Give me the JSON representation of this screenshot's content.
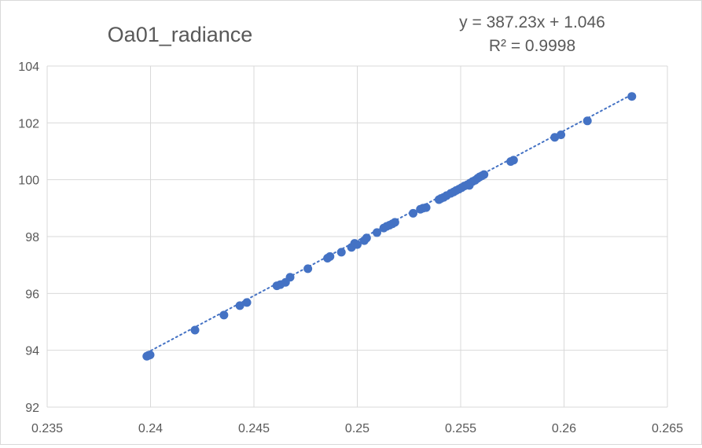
{
  "chart_data": {
    "type": "scatter",
    "title": "Oa01_radiance",
    "trendline": {
      "equation": "y = 387.23x + 1.046",
      "r_squared": "R² = 0.9998",
      "slope": 387.23,
      "intercept": 1.046,
      "style": "dotted"
    },
    "xlim": [
      0.235,
      0.265
    ],
    "ylim": [
      92,
      104
    ],
    "x_ticks": [
      0.235,
      0.24,
      0.245,
      0.25,
      0.255,
      0.26,
      0.265
    ],
    "x_tick_labels": [
      "0.235",
      "0.24",
      "0.245",
      "0.25",
      "0.255",
      "0.26",
      "0.265"
    ],
    "y_ticks": [
      92,
      94,
      96,
      98,
      100,
      102,
      104
    ],
    "y_tick_labels": [
      "92",
      "94",
      "96",
      "98",
      "100",
      "102",
      "104"
    ],
    "grid": true,
    "xlabel": "",
    "ylabel": "",
    "colors": {
      "points": "#4472c4",
      "trendline": "#4472c4",
      "grid": "#d9d9d9",
      "text": "#595959"
    },
    "points": [
      [
        0.23982,
        93.79
      ],
      [
        0.2399,
        93.82
      ],
      [
        0.23998,
        93.84
      ],
      [
        0.24215,
        94.71
      ],
      [
        0.24355,
        95.24
      ],
      [
        0.24432,
        95.57
      ],
      [
        0.24466,
        95.68
      ],
      [
        0.24611,
        96.27
      ],
      [
        0.24628,
        96.31
      ],
      [
        0.24653,
        96.39
      ],
      [
        0.24675,
        96.57
      ],
      [
        0.24761,
        96.87
      ],
      [
        0.24856,
        97.24
      ],
      [
        0.24868,
        97.3
      ],
      [
        0.24923,
        97.45
      ],
      [
        0.24972,
        97.62
      ],
      [
        0.24987,
        97.76
      ],
      [
        0.25,
        97.72
      ],
      [
        0.25034,
        97.86
      ],
      [
        0.25045,
        97.95
      ],
      [
        0.25095,
        98.14
      ],
      [
        0.25128,
        98.3
      ],
      [
        0.25142,
        98.36
      ],
      [
        0.25156,
        98.4
      ],
      [
        0.2517,
        98.45
      ],
      [
        0.25182,
        98.5
      ],
      [
        0.2527,
        98.82
      ],
      [
        0.25305,
        98.96
      ],
      [
        0.25318,
        99.0
      ],
      [
        0.25333,
        99.02
      ],
      [
        0.25395,
        99.3
      ],
      [
        0.25405,
        99.34
      ],
      [
        0.25418,
        99.38
      ],
      [
        0.25432,
        99.44
      ],
      [
        0.25452,
        99.52
      ],
      [
        0.25466,
        99.57
      ],
      [
        0.25478,
        99.62
      ],
      [
        0.25492,
        99.67
      ],
      [
        0.25505,
        99.72
      ],
      [
        0.25518,
        99.78
      ],
      [
        0.25532,
        99.82
      ],
      [
        0.25545,
        99.88
      ],
      [
        0.25542,
        99.8
      ],
      [
        0.25558,
        99.94
      ],
      [
        0.2557,
        99.98
      ],
      [
        0.25582,
        100.05
      ],
      [
        0.25592,
        100.1
      ],
      [
        0.25603,
        100.14
      ],
      [
        0.25613,
        100.18
      ],
      [
        0.25742,
        100.64
      ],
      [
        0.25756,
        100.69
      ],
      [
        0.25955,
        101.49
      ],
      [
        0.25985,
        101.58
      ],
      [
        0.26113,
        102.07
      ],
      [
        0.26328,
        102.93
      ]
    ]
  }
}
